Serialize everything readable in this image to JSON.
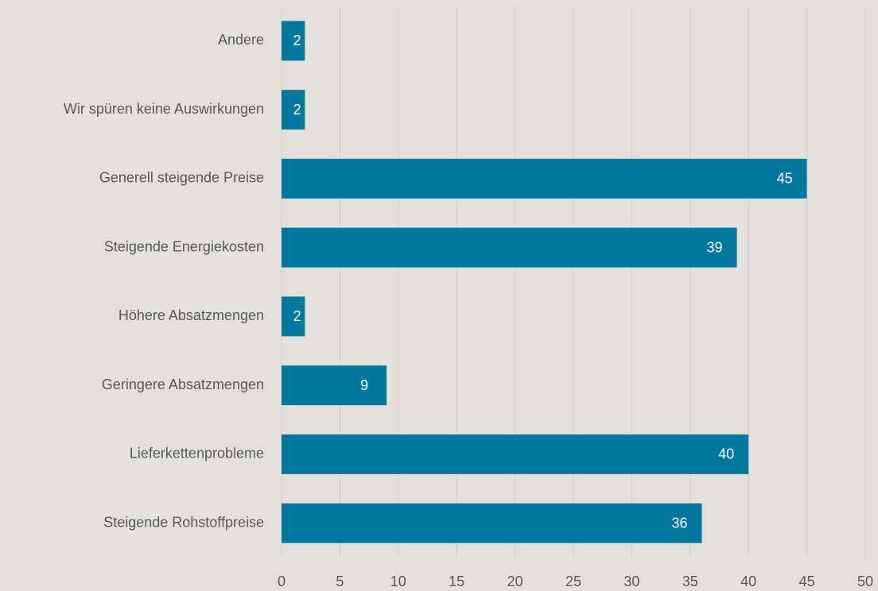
{
  "chart_data": {
    "type": "hbar",
    "categories": [
      "Andere",
      "Wir spüren keine Auswirkungen",
      "Generell steigende Preise",
      "Steigende Energiekosten",
      "Höhere Absatzmengen",
      "Geringere Absatzmengen",
      "Lieferkettenprobleme",
      "Steigende Rohstoffpreise"
    ],
    "values": [
      2,
      2,
      45,
      39,
      2,
      9,
      40,
      36
    ],
    "color": "#00789e",
    "xlim": [
      0,
      50
    ],
    "xticks": [
      0,
      5,
      10,
      15,
      20,
      25,
      30,
      35,
      40,
      45,
      50
    ],
    "grid": true
  }
}
